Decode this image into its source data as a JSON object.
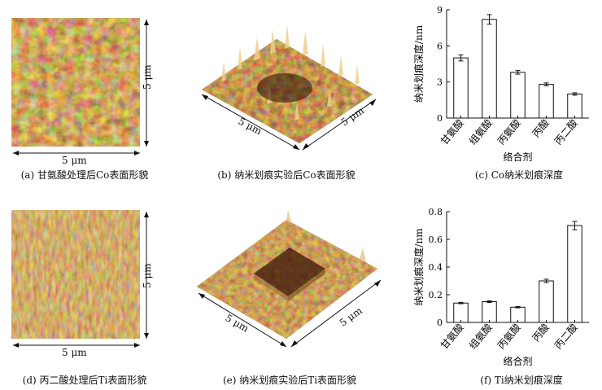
{
  "captions": {
    "a": "(a) 甘氨酸处理后Co表面形貌",
    "b": "(b) 纳米划痕实验后Co表面形貌",
    "c": "(c) Co纳米划痕深度",
    "d": "(d) 丙二酸处理后Ti表面形貌",
    "e": "(e) 纳米划痕实验后Ti表面形貌",
    "f": "(f) Ti纳米划痕深度"
  },
  "dims": {
    "a_x": "5 μm",
    "a_y": "5 μm",
    "b_x": "5 μm",
    "b_y": "5 μm",
    "d_x": "5 μm",
    "d_y": "5 μm",
    "e_x": "5 μm",
    "e_y": "5 μm"
  },
  "colors": {
    "afm_dark": "#3a1a06",
    "afm_light": "#e8c070",
    "bar_fill": "#ffffff",
    "axis": "#111111"
  },
  "chart_data": [
    {
      "type": "bar",
      "categories": [
        "甘氨酸",
        "组氨酸",
        "丙氨酸",
        "丙酸",
        "丙二酸"
      ],
      "values": [
        5.0,
        8.2,
        3.8,
        2.8,
        2.0
      ],
      "errors": [
        0.25,
        0.4,
        0.15,
        0.12,
        0.1
      ],
      "xlabel": "络合剂",
      "ylabel": "纳米划痕深度/nm",
      "ylim": [
        0,
        9
      ],
      "yticks": [
        "0",
        "3",
        "6",
        "9"
      ]
    },
    {
      "type": "bar",
      "categories": [
        "甘氨酸",
        "组氨酸",
        "丙氨酸",
        "丙酸",
        "丙二酸"
      ],
      "values": [
        0.14,
        0.15,
        0.11,
        0.3,
        0.7
      ],
      "errors": [
        0.005,
        0.006,
        0.005,
        0.012,
        0.03
      ],
      "xlabel": "络合剂",
      "ylabel": "纳米划痕深度/nm",
      "ylim": [
        0,
        0.8
      ],
      "yticks": [
        "0",
        "0.2",
        "0.4",
        "0.6",
        "0.8"
      ]
    }
  ]
}
